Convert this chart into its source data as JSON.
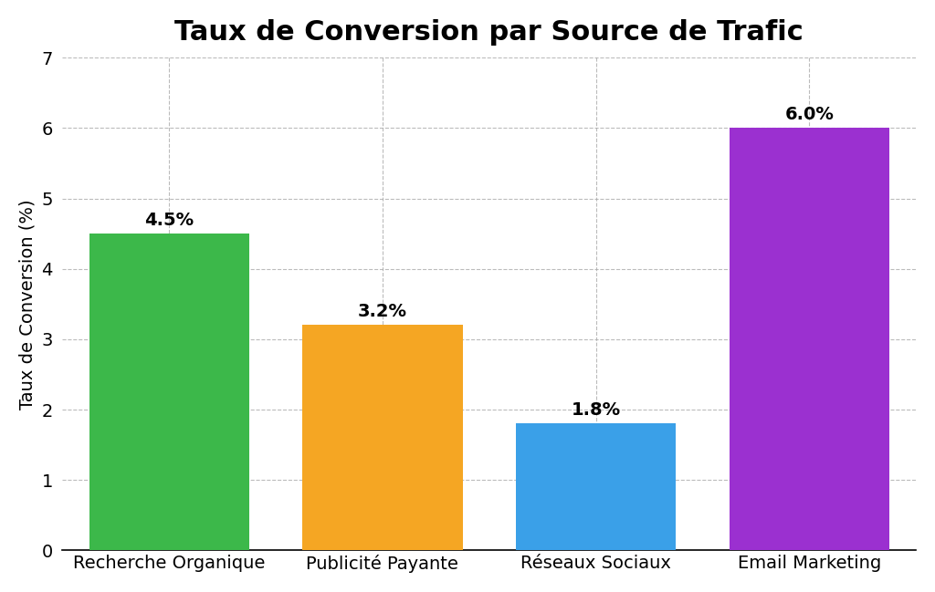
{
  "title": "Taux de Conversion par Source de Trafic",
  "categories": [
    "Recherche Organique",
    "Publicité Payante",
    "Réseaux Sociaux",
    "Email Marketing"
  ],
  "values": [
    4.5,
    3.2,
    1.8,
    6.0
  ],
  "bar_colors": [
    "#3cb84a",
    "#f5a623",
    "#3aa0e8",
    "#9b30d0"
  ],
  "ylabel": "Taux de Conversion (%)",
  "ylim": [
    0,
    7
  ],
  "yticks": [
    0,
    1,
    2,
    3,
    4,
    5,
    6,
    7
  ],
  "labels": [
    "4.5%",
    "3.2%",
    "1.8%",
    "6.0%"
  ],
  "background_color": "#ffffff",
  "title_fontsize": 22,
  "tick_fontsize": 14,
  "ylabel_fontsize": 14,
  "annotation_fontsize": 14,
  "bar_width": 0.75,
  "grid_color": "#aaaaaa",
  "grid_style": "--",
  "grid_alpha": 0.8
}
